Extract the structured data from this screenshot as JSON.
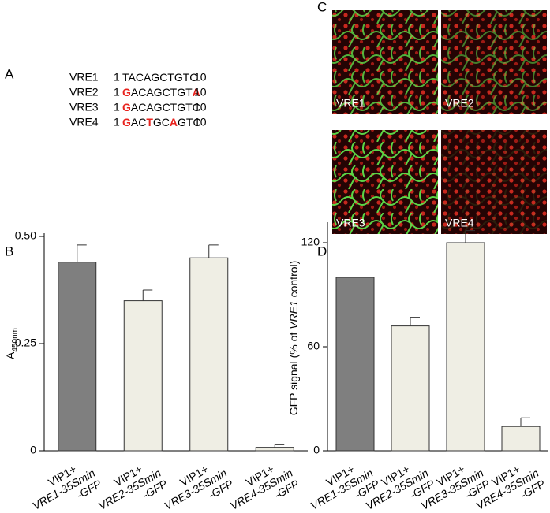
{
  "panel_labels": [
    "A",
    "B",
    "C",
    "D"
  ],
  "alignment": [
    {
      "name": "VRE1",
      "start": 1,
      "end": 10,
      "segments": [
        {
          "text": "TACAGCTGTC",
          "mutated": false
        }
      ]
    },
    {
      "name": "VRE2",
      "start": 1,
      "end": 10,
      "segments": [
        {
          "text": "G",
          "mutated": true
        },
        {
          "text": "ACAGCTGT",
          "mutated": false
        },
        {
          "text": "A",
          "mutated": true
        }
      ]
    },
    {
      "name": "VRE3",
      "start": 1,
      "end": 10,
      "segments": [
        {
          "text": "G",
          "mutated": true
        },
        {
          "text": "ACAGCTGTC",
          "mutated": false
        }
      ]
    },
    {
      "name": "VRE4",
      "start": 1,
      "end": 10,
      "segments": [
        {
          "text": "G",
          "mutated": true
        },
        {
          "text": "AC",
          "mutated": false
        },
        {
          "text": "T",
          "mutated": true
        },
        {
          "text": "GC",
          "mutated": false
        },
        {
          "text": "A",
          "mutated": true
        },
        {
          "text": "GTC",
          "mutated": false
        }
      ]
    }
  ],
  "micrograph_labels": [
    "VRE1",
    "VRE2",
    "VRE3",
    "VRE4"
  ],
  "chart_data": [
    {
      "type": "bar",
      "y_label": [
        "A",
        "450nm"
      ],
      "categories": [
        [
          "VIP1+",
          "VRE1-35Smin",
          "-GFP"
        ],
        [
          "VIP1+",
          "VRE2-35Smin",
          "-GFP"
        ],
        [
          "VIP1+",
          "VRE3-35Smin",
          "-GFP"
        ],
        [
          "VIP1+",
          "VRE4-35Smin",
          "-GFP"
        ]
      ],
      "values": [
        0.44,
        0.35,
        0.45,
        0.008
      ],
      "errors": [
        0.04,
        0.025,
        0.03,
        0.006
      ],
      "colors": [
        "#7f7f7f",
        "#efeee4",
        "#efeee4",
        "#efeee4"
      ],
      "ylim": [
        0,
        0.5
      ],
      "yticks": [
        0,
        0.25,
        {
          "value": 0.5,
          "label": "0.50"
        }
      ]
    },
    {
      "type": "bar",
      "y_label": [
        "GFP signal (% of ",
        "VRE1",
        " control)"
      ],
      "categories": [
        [
          "VIP1+",
          "VRE1-35Smin",
          "-GFP"
        ],
        [
          "VIP1+",
          "VRE2-35Smin",
          "-GFP"
        ],
        [
          "VIP1+",
          "VRE3-35Smin",
          "-GFP"
        ],
        [
          "VIP1+",
          "VRE4-35Smin",
          "-GFP"
        ]
      ],
      "values": [
        100,
        72,
        120,
        14
      ],
      "errors": [
        0,
        5,
        7,
        5
      ],
      "colors": [
        "#7f7f7f",
        "#efeee4",
        "#efeee4",
        "#efeee4"
      ],
      "ylim": [
        0,
        130
      ],
      "yticks": [
        0,
        60,
        120
      ]
    }
  ]
}
